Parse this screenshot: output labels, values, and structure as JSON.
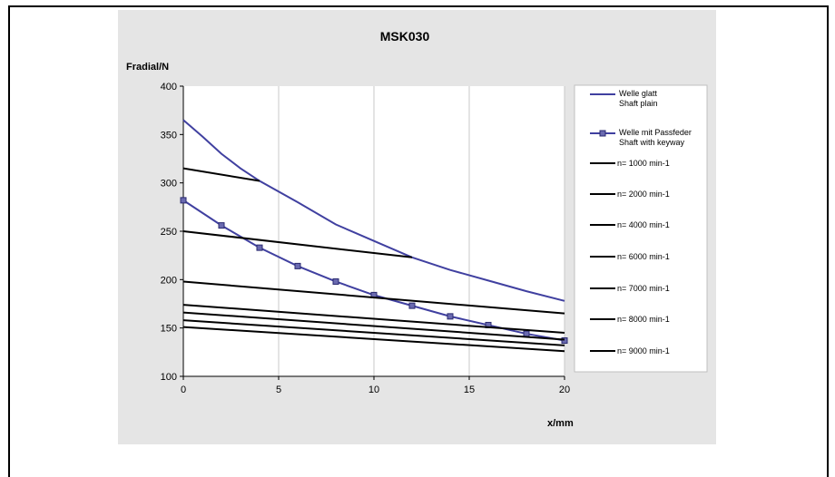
{
  "chart_data": {
    "type": "line",
    "title": "MSK030",
    "xlabel": "x/mm",
    "ylabel": "Fradial/N",
    "xlim": [
      0,
      20
    ],
    "ylim": [
      100,
      400
    ],
    "xticks": [
      0,
      5,
      10,
      15,
      20
    ],
    "yticks": [
      100,
      150,
      200,
      250,
      300,
      350,
      400
    ],
    "grid": "vertical",
    "legend": "right",
    "series": [
      {
        "name": "Welle glatt|Shaft plain",
        "color": "#4040a0",
        "marker": "none",
        "x": [
          0,
          1,
          2,
          3,
          4,
          6,
          8,
          10,
          12,
          14,
          16,
          18,
          20
        ],
        "y": [
          365,
          348,
          330,
          315,
          302,
          280,
          257,
          240,
          223,
          210,
          199,
          188,
          178
        ]
      },
      {
        "name": "Welle mit Passfeder|Shaft with keyway",
        "color": "#4040a0",
        "marker": "square",
        "x": [
          0,
          2,
          4,
          6,
          8,
          10,
          12,
          14,
          16,
          18,
          20
        ],
        "y": [
          282,
          256,
          233,
          214,
          198,
          184,
          173,
          162,
          153,
          144,
          137
        ]
      },
      {
        "name": "n= 1000 min-1",
        "color": "#000000",
        "x": [
          0,
          4
        ],
        "y": [
          315,
          302
        ]
      },
      {
        "name": "n= 2000 min-1",
        "color": "#000000",
        "x": [
          0,
          12
        ],
        "y": [
          250,
          223
        ]
      },
      {
        "name": "n= 4000 min-1",
        "color": "#000000",
        "x": [
          0,
          20
        ],
        "y": [
          198,
          165
        ]
      },
      {
        "name": "n= 6000 min-1",
        "color": "#000000",
        "x": [
          0,
          20
        ],
        "y": [
          174,
          145
        ]
      },
      {
        "name": "n= 7000 min-1",
        "color": "#000000",
        "x": [
          0,
          20
        ],
        "y": [
          166,
          138
        ]
      },
      {
        "name": "n= 8000 min-1",
        "color": "#000000",
        "x": [
          0,
          20
        ],
        "y": [
          158,
          132
        ]
      },
      {
        "name": "n= 9000 min-1",
        "color": "#000000",
        "x": [
          0,
          20
        ],
        "y": [
          151,
          126
        ]
      }
    ]
  }
}
